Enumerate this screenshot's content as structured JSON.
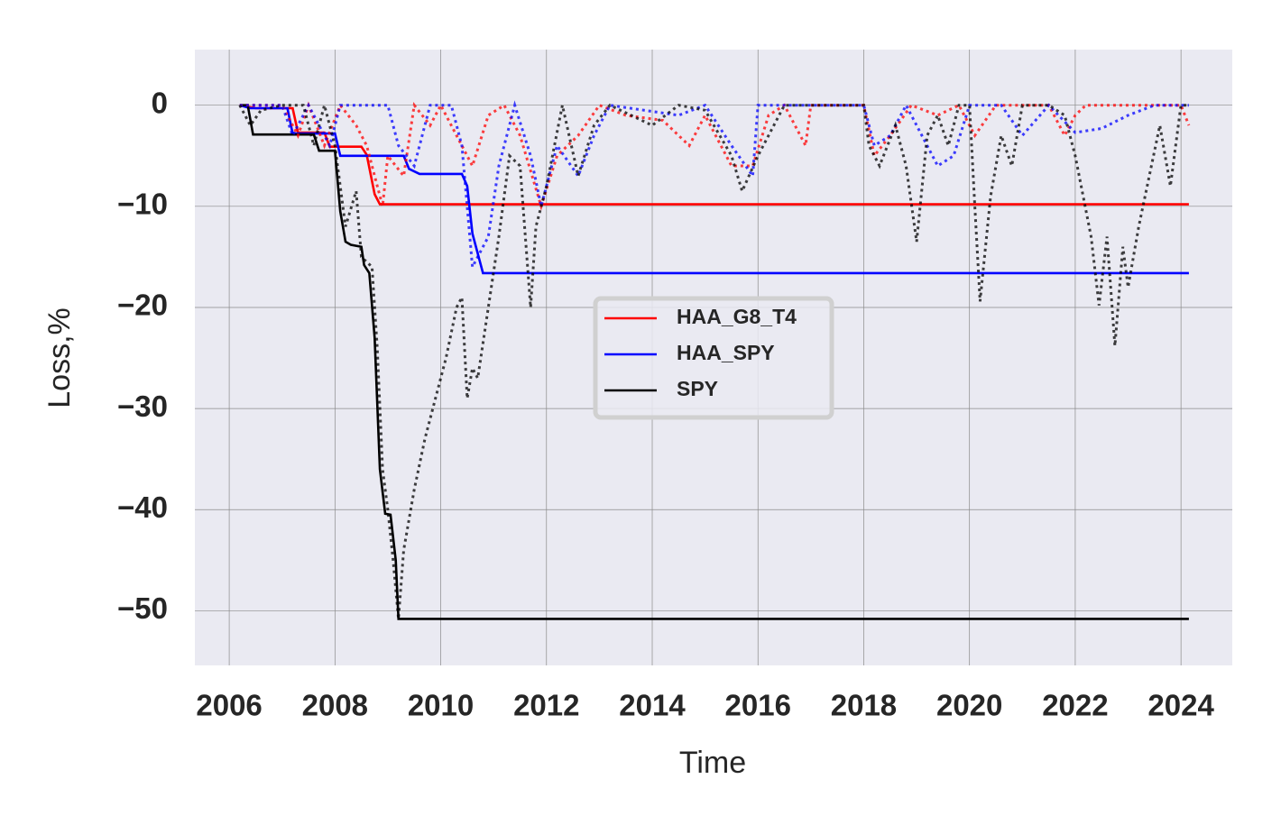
{
  "chart_data": {
    "type": "line",
    "xlabel": "Time",
    "ylabel": "Loss,%",
    "xlim": [
      2005.35,
      2024.97
    ],
    "ylim": [
      -55.4,
      5.5
    ],
    "xticks": [
      2006,
      2008,
      2010,
      2012,
      2014,
      2016,
      2018,
      2020,
      2022,
      2024
    ],
    "yticks": [
      {
        "value": -50,
        "label": "−50"
      },
      {
        "value": -40,
        "label": "−40"
      },
      {
        "value": -30,
        "label": "−30"
      },
      {
        "value": -20,
        "label": "−20"
      },
      {
        "value": -10,
        "label": "−10"
      },
      0
    ],
    "grid": true,
    "legend_loc": "center",
    "series": [
      {
        "name": "HAA_G8_T4",
        "color": "#ff0000",
        "style": "solid",
        "x": [
          2006.2,
          2006.5,
          2007.2,
          2007.3,
          2007.8,
          2007.9,
          2008.5,
          2008.6,
          2008.75,
          2008.85,
          2024.15
        ],
        "values": [
          0,
          -0.3,
          -0.3,
          -2.7,
          -2.7,
          -4.1,
          -4.1,
          -4.9,
          -8.8,
          -9.8,
          -9.8
        ]
      },
      {
        "name": "HAA_SPY",
        "color": "#0000ff",
        "style": "solid",
        "x": [
          2006.2,
          2006.4,
          2007.1,
          2007.2,
          2008.0,
          2008.1,
          2009.3,
          2009.4,
          2009.6,
          2010.4,
          2010.5,
          2010.6,
          2010.8,
          2024.15
        ],
        "values": [
          0,
          -0.3,
          -0.3,
          -2.8,
          -2.8,
          -5,
          -5,
          -6.3,
          -6.8,
          -6.8,
          -8,
          -12.7,
          -16.6,
          -16.6
        ]
      },
      {
        "name": "SPY",
        "color": "#000000",
        "style": "solid",
        "x": [
          2006.2,
          2006.35,
          2006.45,
          2007.6,
          2007.7,
          2008.0,
          2008.1,
          2008.2,
          2008.3,
          2008.5,
          2008.55,
          2008.65,
          2008.75,
          2008.85,
          2008.95,
          2009.05,
          2009.15,
          2009.2,
          2024.15
        ],
        "values": [
          0,
          0,
          -2.9,
          -2.9,
          -4.5,
          -4.5,
          -10.5,
          -13.5,
          -13.8,
          -14,
          -15.8,
          -16.6,
          -23,
          -36,
          -40.4,
          -40.5,
          -45,
          -50.8,
          -50.8
        ]
      },
      {
        "color": "#ff0000",
        "style": "dotted",
        "x": [
          2006.2,
          2007.0,
          2007.3,
          2007.5,
          2007.8,
          2008.1,
          2008.4,
          2008.6,
          2008.9,
          2009.0,
          2009.3,
          2009.5,
          2009.8,
          2010.0,
          2010.3,
          2010.6,
          2010.9,
          2011.2,
          2011.5,
          2011.9,
          2012.2,
          2012.6,
          2013.0,
          2013.5,
          2014.2,
          2014.7,
          2015.0,
          2015.5,
          2015.9,
          2016.2,
          2016.5,
          2016.9,
          2017.0,
          2018.0,
          2018.2,
          2018.5,
          2018.9,
          2019.4,
          2019.8,
          2020.1,
          2020.5,
          2021.5,
          2021.8,
          2022.0,
          2022.2,
          2024.0,
          2024.15
        ],
        "values": [
          0,
          0,
          -3,
          0,
          -4,
          0,
          -2,
          -4,
          -10,
          -5,
          -7,
          0,
          -2,
          0,
          -3,
          -6,
          -1,
          0,
          -3,
          -10,
          -5,
          -3,
          0,
          -1,
          -1.5,
          -4,
          -1,
          -6,
          -6,
          -1,
          0,
          -4,
          0,
          0,
          -5,
          -3,
          0,
          -1,
          0,
          -3,
          0,
          0,
          -3,
          -1,
          0,
          0,
          -2
        ]
      },
      {
        "color": "#0000ff",
        "style": "dotted",
        "x": [
          2006.2,
          2007.0,
          2007.2,
          2007.5,
          2007.9,
          2008.1,
          2009.0,
          2009.2,
          2009.5,
          2009.8,
          2010.2,
          2010.4,
          2010.6,
          2010.9,
          2011.1,
          2011.4,
          2011.7,
          2011.9,
          2012.2,
          2012.6,
          2012.9,
          2013.2,
          2014.5,
          2015.0,
          2015.5,
          2015.9,
          2016.0,
          2018.0,
          2018.2,
          2018.5,
          2018.8,
          2019.4,
          2019.7,
          2020.0,
          2020.6,
          2021.0,
          2021.5,
          2022.0,
          2022.5,
          2023.0,
          2023.5,
          2024.15
        ],
        "values": [
          0,
          0,
          -3,
          0,
          -4,
          0,
          0,
          -4,
          -6,
          0,
          0,
          -4,
          -16,
          -13,
          -6,
          0,
          -5,
          -10,
          -4,
          -7,
          -3,
          0,
          -1,
          0,
          -4,
          -7,
          0,
          0,
          -4,
          -3,
          0,
          -6,
          -5,
          0,
          0,
          -3,
          0,
          -2.7,
          -2.3,
          -1,
          0,
          0
        ]
      },
      {
        "color": "#000000",
        "style": "dotted",
        "x": [
          2006.2,
          2006.4,
          2006.6,
          2007.0,
          2007.4,
          2007.6,
          2007.8,
          2008.0,
          2008.2,
          2008.4,
          2008.5,
          2008.7,
          2008.8,
          2008.9,
          2009.0,
          2009.1,
          2009.2,
          2009.3,
          2009.5,
          2009.7,
          2009.9,
          2010.1,
          2010.3,
          2010.4,
          2010.5,
          2010.6,
          2010.7,
          2010.9,
          2011.1,
          2011.3,
          2011.5,
          2011.7,
          2011.8,
          2012.0,
          2012.3,
          2012.6,
          2012.9,
          2013.2,
          2013.6,
          2014.0,
          2014.5,
          2015.0,
          2015.5,
          2015.7,
          2016.0,
          2016.5,
          2017.0,
          2018.0,
          2018.1,
          2018.3,
          2018.6,
          2018.8,
          2019.0,
          2019.2,
          2019.4,
          2019.6,
          2019.8,
          2020.0,
          2020.1,
          2020.2,
          2020.4,
          2020.6,
          2020.8,
          2021.0,
          2021.5,
          2021.8,
          2022.0,
          2022.3,
          2022.45,
          2022.6,
          2022.75,
          2022.9,
          2023.0,
          2023.2,
          2023.4,
          2023.6,
          2023.8,
          2024.0,
          2024.15
        ],
        "values": [
          0,
          -2,
          -0.5,
          0,
          0,
          -4,
          0,
          -4,
          -12,
          -8.5,
          -15,
          -16,
          -24,
          -36,
          -40,
          -45,
          -50.8,
          -44,
          -38,
          -33,
          -29,
          -25,
          -20,
          -19,
          -29,
          -26,
          -27,
          -20,
          -13,
          -5,
          -6,
          -20,
          -12,
          -8,
          0,
          -7,
          -2,
          0,
          -1,
          -2,
          0,
          -0.5,
          -5,
          -8.5,
          -5,
          0,
          0,
          0,
          -4,
          -6,
          -2,
          -6,
          -13.5,
          -3,
          -1,
          -4,
          0,
          0,
          -10,
          -19.4,
          -9,
          -3,
          -6,
          0,
          0,
          -1,
          -5,
          -13,
          -19.8,
          -13,
          -23.8,
          -14,
          -18,
          -12,
          -7,
          -2,
          -8,
          0,
          0
        ]
      }
    ]
  }
}
